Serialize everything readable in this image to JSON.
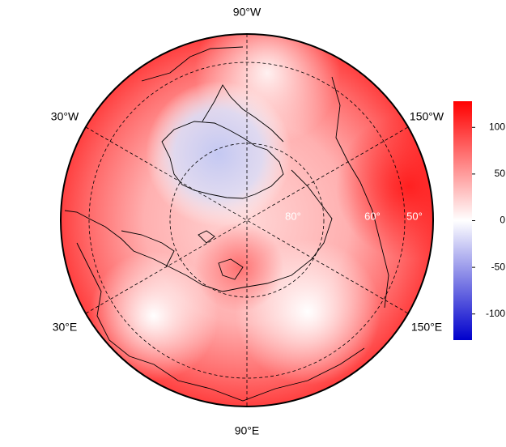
{
  "map": {
    "longitude_labels": [
      "90°W",
      "30°W",
      "150°W",
      "30°E",
      "150°E",
      "90°E"
    ],
    "latitude_labels": [
      "80°",
      "60°",
      "50°"
    ]
  },
  "colorbar": {
    "colors": [
      "#0000cc",
      "#ffffff",
      "#ff0000"
    ],
    "ylim": [
      -128,
      128
    ],
    "yticks": [
      -100,
      -50,
      0,
      50,
      100
    ]
  }
}
